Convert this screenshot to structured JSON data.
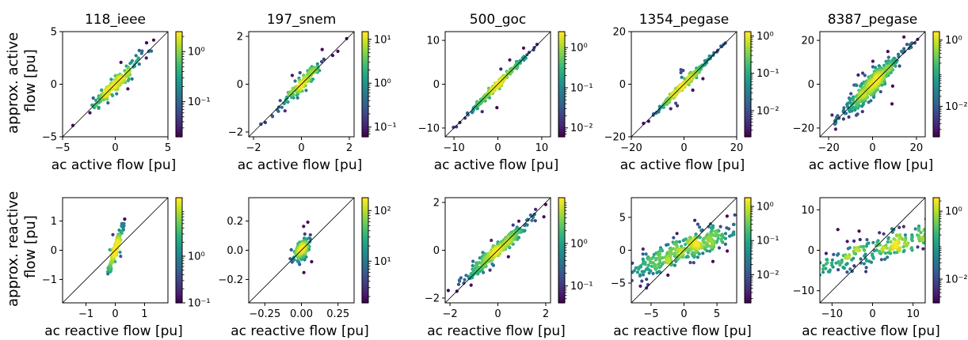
{
  "figure": {
    "row_ylabels": [
      [
        "approx. active",
        "flow [pu]"
      ],
      [
        "approx. reactive",
        "flow [pu]"
      ]
    ]
  },
  "colors": {
    "viridis": [
      "#440154",
      "#482878",
      "#3e4989",
      "#31688e",
      "#26828e",
      "#1f9e89",
      "#35b779",
      "#6ece58",
      "#b5de2b",
      "#fde725"
    ],
    "axes": "#000000",
    "diagonal": "#000000"
  },
  "chart_data": [
    {
      "type": "scatter",
      "title": "118_ieee",
      "xlabel": "ac active flow [pu]",
      "ylabel": "",
      "xlim": [
        -5,
        5
      ],
      "ylim": [
        -5,
        5
      ],
      "xticks": [
        -5,
        0,
        5
      ],
      "yticks": [
        -5,
        0,
        5
      ],
      "xtick_labels": [
        "−5",
        "0",
        "5"
      ],
      "ytick_labels": [
        "−5",
        "0",
        "5"
      ],
      "diagonal": true,
      "spread": 0.4,
      "slope": 1.0,
      "outliers": 0.22,
      "n_points": 180,
      "colorbar": {
        "scale": "log",
        "min": 0.02,
        "max": 2.5,
        "ticks": [
          0.1,
          1
        ],
        "tick_labels": [
          "10⁻¹",
          "10⁰"
        ]
      }
    },
    {
      "type": "scatter",
      "title": "197_snem",
      "xlabel": "ac active flow [pu]",
      "ylabel": "",
      "xlim": [
        -2.2,
        2.2
      ],
      "ylim": [
        -2.2,
        2.2
      ],
      "xticks": [
        -2,
        0,
        2
      ],
      "yticks": [
        -2,
        0,
        2
      ],
      "xtick_labels": [
        "−2",
        "0",
        "2"
      ],
      "ytick_labels": [
        "−2",
        "0",
        "2"
      ],
      "diagonal": true,
      "spread": 0.15,
      "slope": 1.0,
      "outliers": 0.3,
      "n_points": 150,
      "colorbar": {
        "scale": "log",
        "min": 0.06,
        "max": 15,
        "ticks": [
          0.1,
          1,
          10
        ],
        "tick_labels": [
          "10⁻¹",
          "10⁰",
          "10¹"
        ]
      }
    },
    {
      "type": "scatter",
      "title": "500_goc",
      "xlabel": "ac active flow [pu]",
      "ylabel": "",
      "xlim": [
        -12,
        12
      ],
      "ylim": [
        -12,
        12
      ],
      "xticks": [
        -10,
        0,
        10
      ],
      "yticks": [
        -10,
        0,
        10
      ],
      "xtick_labels": [
        "−10",
        "0",
        "10"
      ],
      "ytick_labels": [
        "−10",
        "0",
        "10"
      ],
      "diagonal": true,
      "spread": 0.4,
      "slope": 1.0,
      "outliers": 0.12,
      "n_points": 260,
      "colorbar": {
        "scale": "log",
        "min": 0.006,
        "max": 2.5,
        "ticks": [
          0.01,
          0.1,
          1
        ],
        "tick_labels": [
          "10⁻²",
          "10⁻¹",
          "10⁰"
        ]
      }
    },
    {
      "type": "scatter",
      "title": "1354_pegase",
      "xlabel": "ac active flow [pu]",
      "ylabel": "",
      "xlim": [
        -20,
        20
      ],
      "ylim": [
        -20,
        20
      ],
      "xticks": [
        -20,
        0,
        20
      ],
      "yticks": [
        -20,
        0,
        20
      ],
      "xtick_labels": [
        "−20",
        "0",
        "20"
      ],
      "ytick_labels": [
        "−20",
        "0",
        "20"
      ],
      "diagonal": true,
      "spread": 0.6,
      "slope": 1.0,
      "outliers": 0.1,
      "n_points": 320,
      "colorbar": {
        "scale": "log",
        "min": 0.002,
        "max": 1.3,
        "ticks": [
          0.01,
          0.1,
          1
        ],
        "tick_labels": [
          "10⁻²",
          "10⁻¹",
          "10⁰"
        ]
      }
    },
    {
      "type": "scatter",
      "title": "8387_pegase",
      "xlabel": "ac active flow [pu]",
      "ylabel": "",
      "xlim": [
        -24,
        24
      ],
      "ylim": [
        -24,
        24
      ],
      "xticks": [
        -20,
        0,
        20
      ],
      "yticks": [
        -20,
        0,
        20
      ],
      "xtick_labels": [
        "−20",
        "0",
        "20"
      ],
      "ytick_labels": [
        "−20",
        "0",
        "20"
      ],
      "diagonal": true,
      "spread": 2.2,
      "slope": 1.0,
      "outliers": 0.25,
      "n_points": 550,
      "colorbar": {
        "scale": "log",
        "min": 0.0012,
        "max": 1.8,
        "ticks": [
          0.01,
          1
        ],
        "tick_labels": [
          "10⁻²",
          "10⁰"
        ]
      }
    },
    {
      "type": "scatter",
      "title": "",
      "xlabel": "ac reactive flow [pu]",
      "ylabel": "",
      "xlim": [
        -1.8,
        1.8
      ],
      "ylim": [
        -1.8,
        1.8
      ],
      "xticks": [
        -1,
        0,
        1
      ],
      "yticks": [
        -1,
        0,
        1
      ],
      "xtick_labels": [
        "−1",
        "0",
        "1"
      ],
      "ytick_labels": [
        "−1",
        "0",
        "1"
      ],
      "diagonal": true,
      "spread": 0.1,
      "slope": 3.0,
      "x_sd": 0.07,
      "outliers": 0.25,
      "n_points": 170,
      "colorbar": {
        "scale": "log",
        "min": 0.1,
        "max": 18,
        "ticks": [
          0.1,
          1
        ],
        "tick_labels": [
          "10⁻¹",
          "10⁰"
        ]
      }
    },
    {
      "type": "scatter",
      "title": "",
      "xlabel": "ac reactive flow [pu]",
      "ylabel": "",
      "xlim": [
        -0.36,
        0.36
      ],
      "ylim": [
        -0.36,
        0.36
      ],
      "xticks": [
        -0.25,
        0,
        0.25
      ],
      "yticks": [
        -0.2,
        0,
        0.2
      ],
      "xtick_labels": [
        "−0.25",
        "0.00",
        "0.25"
      ],
      "ytick_labels": [
        "−0.2",
        "0.0",
        "0.2"
      ],
      "diagonal": true,
      "spread": 0.025,
      "slope": 1.0,
      "x_sd": 0.06,
      "outliers": 0.3,
      "n_points": 170,
      "colorbar": {
        "scale": "log",
        "min": 1.5,
        "max": 180,
        "ticks": [
          10,
          100
        ],
        "tick_labels": [
          "10¹",
          "10²"
        ]
      }
    },
    {
      "type": "scatter",
      "title": "",
      "xlabel": "ac reactive flow [pu]",
      "ylabel": "",
      "xlim": [
        -2.2,
        2.2
      ],
      "ylim": [
        -2.2,
        2.2
      ],
      "xticks": [
        -2,
        0,
        2
      ],
      "yticks": [
        -2,
        0,
        2
      ],
      "xtick_labels": [
        "−2",
        "0",
        "2"
      ],
      "ytick_labels": [
        "−2",
        "0",
        "2"
      ],
      "diagonal": true,
      "spread": 0.15,
      "slope": 0.9,
      "x_sd": 0.28,
      "outliers": 0.15,
      "n_points": 320,
      "colorbar": {
        "scale": "log",
        "min": 0.04,
        "max": 12,
        "ticks": [
          0.1,
          1
        ],
        "tick_labels": [
          "10⁻¹",
          "10⁰"
        ]
      }
    },
    {
      "type": "scatter",
      "title": "",
      "xlabel": "ac reactive flow [pu]",
      "ylabel": "",
      "xlim": [
        -8,
        8
      ],
      "ylim": [
        -8,
        8
      ],
      "xticks": [
        -5,
        0,
        5
      ],
      "yticks": [
        -5,
        0,
        5
      ],
      "xtick_labels": [
        "−5",
        "0",
        "5"
      ],
      "ytick_labels": [
        "−5",
        "0",
        "5"
      ],
      "diagonal": true,
      "spread": 1.0,
      "slope": 0.4,
      "x_sd": 0.6,
      "outliers": 0.2,
      "n_points": 380,
      "colorbar": {
        "scale": "log",
        "min": 0.0015,
        "max": 1.8,
        "ticks": [
          0.01,
          0.1,
          1
        ],
        "tick_labels": [
          "10⁻²",
          "10⁻¹",
          "10⁰"
        ]
      }
    },
    {
      "type": "scatter",
      "title": "",
      "xlabel": "ac reactive flow [pu]",
      "ylabel": "",
      "xlim": [
        -13,
        13
      ],
      "ylim": [
        -13,
        13
      ],
      "xticks": [
        -10,
        0,
        10
      ],
      "yticks": [
        -10,
        0,
        10
      ],
      "xtick_labels": [
        "−10",
        "0",
        "10"
      ],
      "ytick_labels": [
        "−10",
        "0",
        "10"
      ],
      "diagonal": true,
      "spread": 1.5,
      "slope": 0.3,
      "x_sd": 2.0,
      "outliers": 0.3,
      "n_points": 520,
      "colorbar": {
        "scale": "log",
        "min": 0.002,
        "max": 2.5,
        "ticks": [
          0.01,
          1
        ],
        "tick_labels": [
          "10⁻²",
          "10⁰"
        ]
      }
    }
  ]
}
